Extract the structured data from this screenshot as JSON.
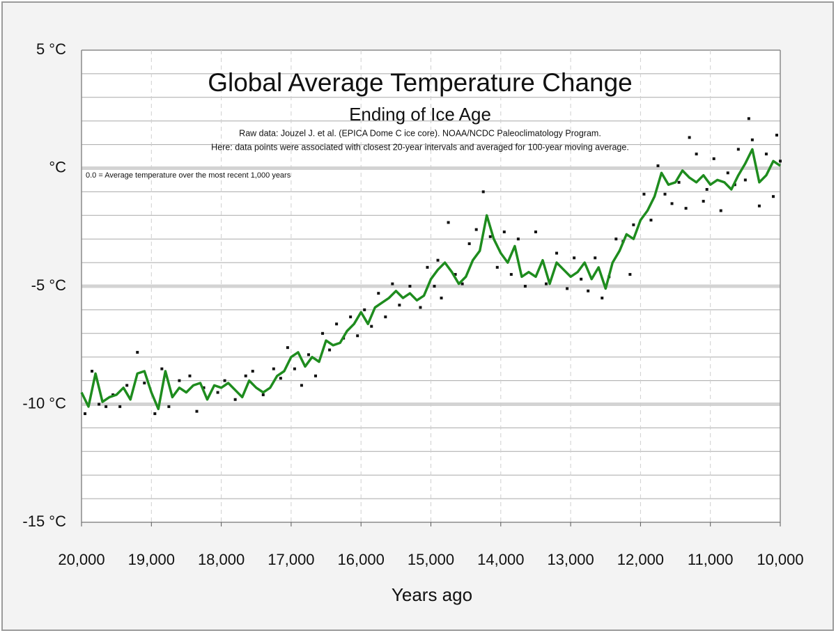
{
  "chart_data": {
    "type": "line",
    "title": "Global Average Temperature Change",
    "subtitle": "Ending of Ice Age",
    "source_lines": [
      "Raw data: Jouzel J. et al. (EPICA Dome C ice core). NOAA/NCDC Paleoclimatology Program.",
      "Here: data points were associated with closest 20-year intervals and averaged for 100-year moving average."
    ],
    "annotation": "0.0 = Average temperature over the most recent 1,000 years",
    "xlabel": "Years ago",
    "xlim": [
      20000,
      10000
    ],
    "xticks": [
      {
        "value": 20000,
        "label": "20,000"
      },
      {
        "value": 19000,
        "label": "19,000"
      },
      {
        "value": 18000,
        "label": "18,000"
      },
      {
        "value": 17000,
        "label": "17,000"
      },
      {
        "value": 16000,
        "label": "16,000"
      },
      {
        "value": 15000,
        "label": "15,000"
      },
      {
        "value": 14000,
        "label": "14,000"
      },
      {
        "value": 13000,
        "label": "13,000"
      },
      {
        "value": 12000,
        "label": "12,000"
      },
      {
        "value": 11000,
        "label": "11,000"
      },
      {
        "value": 10000,
        "label": "10,000"
      }
    ],
    "ylim": [
      -15,
      5
    ],
    "yticks": [
      {
        "value": 5,
        "label": "5 °C"
      },
      {
        "value": 0,
        "label": "°C"
      },
      {
        "value": -5,
        "label": "-5 °C"
      },
      {
        "value": -10,
        "label": "-10 °C"
      },
      {
        "value": -15,
        "label": "-15 °C"
      }
    ],
    "minor_yticks": [
      4,
      3,
      2,
      1,
      -1,
      -2,
      -3,
      -4,
      -6,
      -7,
      -8,
      -9,
      -11,
      -12,
      -13,
      -14
    ],
    "grid": true,
    "series": [
      {
        "style": "points",
        "color": "#111111",
        "x": [
          19950,
          19850,
          19750,
          19650,
          19550,
          19450,
          19350,
          19200,
          19100,
          18950,
          18850,
          18750,
          18600,
          18450,
          18350,
          18250,
          18050,
          17950,
          17800,
          17650,
          17550,
          17400,
          17250,
          17150,
          17050,
          16950,
          16850,
          16750,
          16650,
          16550,
          16450,
          16350,
          16250,
          16150,
          16050,
          15950,
          15850,
          15750,
          15650,
          15550,
          15450,
          15300,
          15150,
          15050,
          14950,
          14900,
          14850,
          14750,
          14650,
          14550,
          14450,
          14350,
          14250,
          14150,
          14050,
          13950,
          13850,
          13750,
          13650,
          13500,
          13350,
          13200,
          13050,
          12950,
          12850,
          12750,
          12650,
          12550,
          12450,
          12350,
          12250,
          12150,
          12100,
          11950,
          11850,
          11750,
          11650,
          11550,
          11450,
          11350,
          11300,
          11200,
          11100,
          11050,
          10950,
          10850,
          10750,
          10650,
          10600,
          10500,
          10450,
          10400,
          10300,
          10200,
          10100,
          10050,
          10000
        ],
        "values": [
          -10.4,
          -8.6,
          -10.0,
          -10.1,
          -9.6,
          -10.1,
          -9.2,
          -7.8,
          -9.1,
          -10.4,
          -8.5,
          -10.1,
          -9.0,
          -8.8,
          -10.3,
          -9.3,
          -9.5,
          -9.0,
          -9.8,
          -8.8,
          -8.6,
          -9.6,
          -8.5,
          -8.9,
          -7.6,
          -8.5,
          -9.2,
          -7.9,
          -8.8,
          -7.0,
          -7.7,
          -6.6,
          -7.2,
          -6.3,
          -7.1,
          -6.0,
          -6.7,
          -5.3,
          -6.3,
          -4.9,
          -5.8,
          -5.0,
          -5.9,
          -4.2,
          -5.0,
          -3.9,
          -5.5,
          -2.3,
          -4.5,
          -4.9,
          -3.2,
          -2.6,
          -1.0,
          -2.9,
          -4.2,
          -2.7,
          -4.5,
          -3.0,
          -5.0,
          -2.7,
          -4.9,
          -3.6,
          -5.1,
          -3.8,
          -4.7,
          -5.2,
          -3.8,
          -5.5,
          -4.6,
          -3.0,
          -3.1,
          -4.5,
          -2.4,
          -1.1,
          -2.2,
          0.1,
          -1.1,
          -1.5,
          -0.6,
          -1.7,
          1.3,
          0.6,
          -1.4,
          -0.9,
          0.4,
          -1.8,
          -0.2,
          -0.7,
          0.8,
          -0.5,
          2.1,
          1.2,
          -1.6,
          0.6,
          -1.2,
          1.4,
          0.3
        ]
      },
      {
        "style": "line",
        "color": "#1e8c1e",
        "x": [
          20000,
          19900,
          19800,
          19700,
          19600,
          19500,
          19400,
          19300,
          19200,
          19100,
          19000,
          18900,
          18800,
          18700,
          18600,
          18500,
          18400,
          18300,
          18200,
          18100,
          18000,
          17900,
          17800,
          17700,
          17600,
          17500,
          17400,
          17300,
          17200,
          17100,
          17000,
          16900,
          16800,
          16700,
          16600,
          16500,
          16400,
          16300,
          16200,
          16100,
          16000,
          15900,
          15800,
          15700,
          15600,
          15500,
          15400,
          15300,
          15200,
          15100,
          15000,
          14900,
          14800,
          14700,
          14600,
          14500,
          14400,
          14300,
          14200,
          14100,
          14000,
          13900,
          13800,
          13700,
          13600,
          13500,
          13400,
          13300,
          13200,
          13100,
          13000,
          12900,
          12800,
          12700,
          12600,
          12500,
          12400,
          12300,
          12200,
          12100,
          12000,
          11900,
          11800,
          11700,
          11600,
          11500,
          11400,
          11300,
          11200,
          11100,
          11000,
          10900,
          10800,
          10700,
          10600,
          10500,
          10400,
          10300,
          10200,
          10100,
          10000
        ],
        "values": [
          -9.5,
          -10.1,
          -8.7,
          -9.9,
          -9.7,
          -9.6,
          -9.3,
          -9.8,
          -8.7,
          -8.6,
          -9.5,
          -10.2,
          -8.6,
          -9.7,
          -9.3,
          -9.5,
          -9.2,
          -9.1,
          -9.8,
          -9.2,
          -9.3,
          -9.1,
          -9.4,
          -9.7,
          -9.0,
          -9.3,
          -9.5,
          -9.3,
          -8.8,
          -8.6,
          -8.0,
          -7.8,
          -8.4,
          -8.0,
          -8.2,
          -7.3,
          -7.5,
          -7.4,
          -6.9,
          -6.6,
          -6.1,
          -6.6,
          -5.9,
          -5.7,
          -5.5,
          -5.2,
          -5.5,
          -5.3,
          -5.6,
          -5.4,
          -4.7,
          -4.3,
          -4.0,
          -4.4,
          -4.9,
          -4.6,
          -3.9,
          -3.5,
          -2.0,
          -3.0,
          -3.6,
          -4.0,
          -3.3,
          -4.6,
          -4.4,
          -4.6,
          -3.9,
          -4.9,
          -4.0,
          -4.3,
          -4.6,
          -4.4,
          -4.0,
          -4.7,
          -4.2,
          -5.1,
          -4.0,
          -3.5,
          -2.8,
          -3.0,
          -2.2,
          -1.8,
          -1.2,
          -0.2,
          -0.7,
          -0.6,
          -0.1,
          -0.4,
          -0.6,
          -0.3,
          -0.7,
          -0.5,
          -0.6,
          -0.9,
          -0.3,
          0.2,
          0.8,
          -0.6,
          -0.3,
          0.3,
          0.1
        ]
      }
    ]
  }
}
